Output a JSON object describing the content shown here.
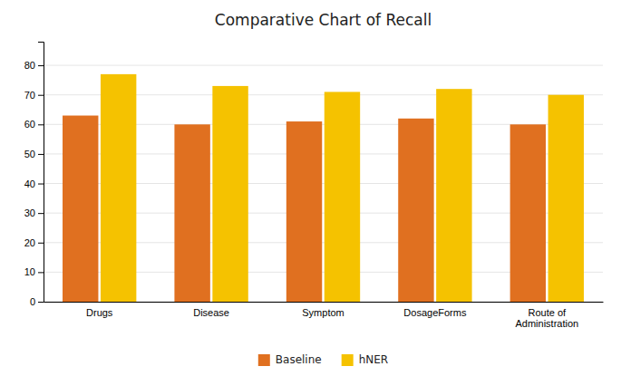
{
  "chart_data": {
    "type": "bar",
    "title": "Comparative Chart of Recall",
    "categories": [
      "Drugs",
      "Disease",
      "Symptom",
      "DosageForms",
      "Route of\nAdministration"
    ],
    "series": [
      {
        "name": "Baseline",
        "color": "#E07020",
        "values": [
          63,
          60,
          61,
          62,
          60
        ]
      },
      {
        "name": "hNER",
        "color": "#F5C200",
        "values": [
          77,
          73,
          71,
          72,
          70
        ]
      }
    ],
    "ylim": [
      0,
      88
    ],
    "yticks": [
      0,
      10,
      20,
      30,
      40,
      50,
      60,
      70,
      80
    ],
    "grid": true,
    "legend": "bottom"
  }
}
